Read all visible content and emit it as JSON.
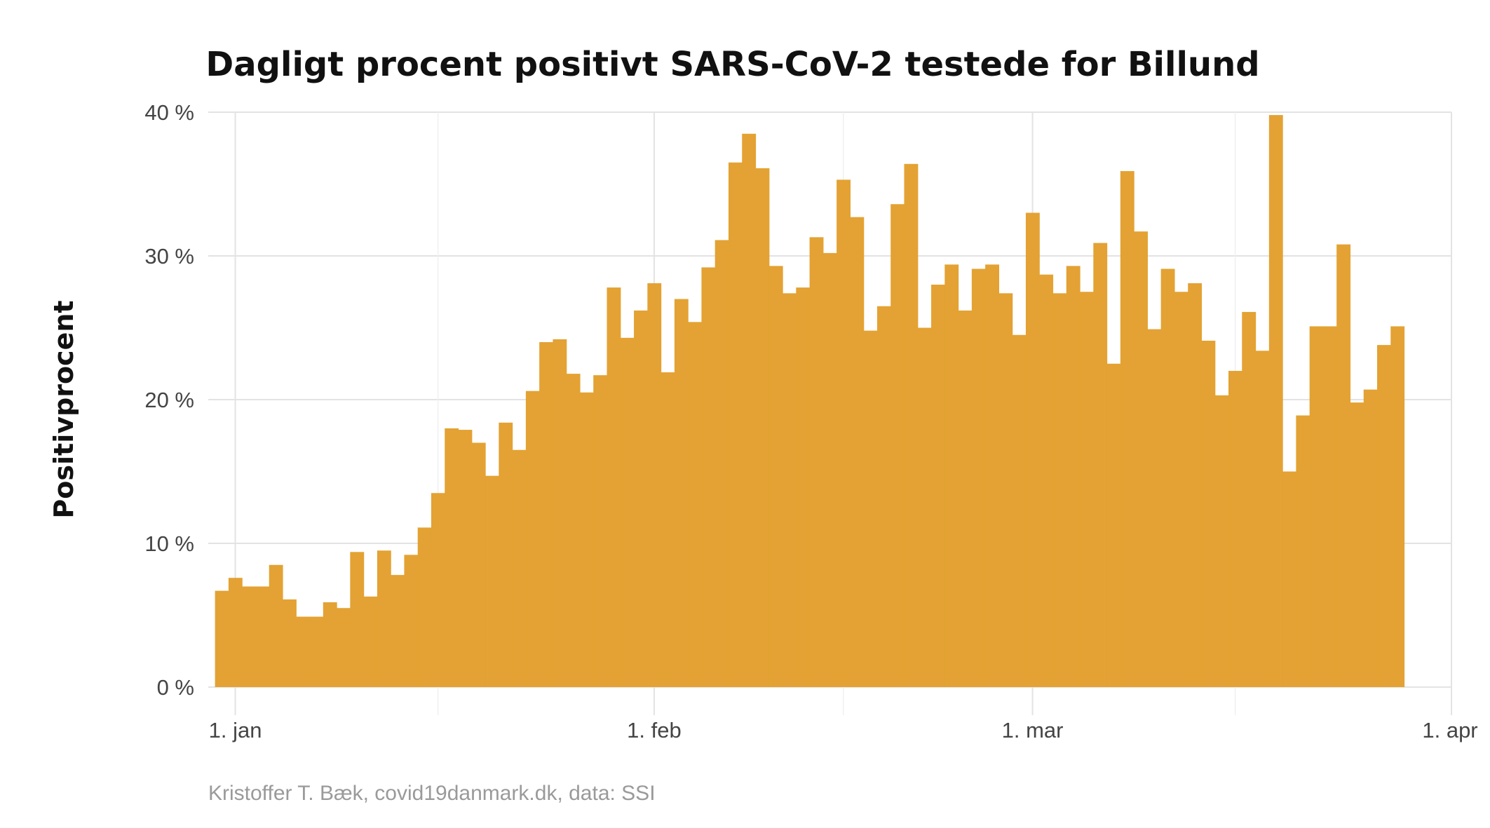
{
  "chart_data": {
    "type": "bar",
    "title": "Dagligt procent positivt SARS-CoV-2 testede for Billund",
    "ylabel": "Positivprocent",
    "xlabel": "",
    "caption": "Kristoffer T. Bæk, covid19danmark.dk, data: SSI",
    "bar_color": "#E3A233",
    "grid": true,
    "ylim": [
      0,
      40
    ],
    "y_ticks": [
      {
        "value": 0,
        "label": "0 %"
      },
      {
        "value": 10,
        "label": "10 %"
      },
      {
        "value": 20,
        "label": "20 %"
      },
      {
        "value": 30,
        "label": "30 %"
      },
      {
        "value": 40,
        "label": "40 %"
      }
    ],
    "x_range": [
      "2020-12-30",
      "2021-04-01"
    ],
    "x_ticks": [
      {
        "date": "2021-01-01",
        "label": "1. jan"
      },
      {
        "date": "2021-02-01",
        "label": "1. feb"
      },
      {
        "date": "2021-03-01",
        "label": "1. mar"
      },
      {
        "date": "2021-04-01",
        "label": "1. apr"
      }
    ],
    "x_minor_dates": [
      "2021-01-16",
      "2021-02-15",
      "2021-03-16"
    ],
    "start_date": "2020-12-31",
    "values": [
      6.7,
      7.6,
      7.0,
      7.0,
      8.5,
      6.1,
      4.9,
      4.9,
      5.9,
      5.5,
      9.4,
      6.3,
      9.5,
      7.8,
      9.2,
      11.1,
      13.5,
      18.0,
      17.9,
      17.0,
      14.7,
      18.4,
      16.5,
      20.6,
      24.0,
      24.2,
      21.8,
      20.5,
      21.7,
      27.8,
      24.3,
      26.2,
      28.1,
      21.9,
      27.0,
      25.4,
      29.2,
      31.1,
      36.5,
      38.5,
      36.1,
      29.3,
      27.4,
      27.8,
      31.3,
      30.2,
      35.3,
      32.7,
      24.8,
      26.5,
      33.6,
      36.4,
      25.0,
      28.0,
      29.4,
      26.2,
      29.1,
      29.4,
      27.4,
      24.5,
      33.0,
      28.7,
      27.4,
      29.3,
      27.5,
      30.9,
      22.5,
      35.9,
      31.7,
      24.9,
      29.1,
      27.5,
      28.1,
      24.1,
      20.3,
      22.0,
      26.1,
      23.4,
      39.8,
      15.0,
      18.9,
      25.1,
      25.1,
      30.8,
      19.8,
      20.7,
      23.8,
      25.1
    ]
  }
}
